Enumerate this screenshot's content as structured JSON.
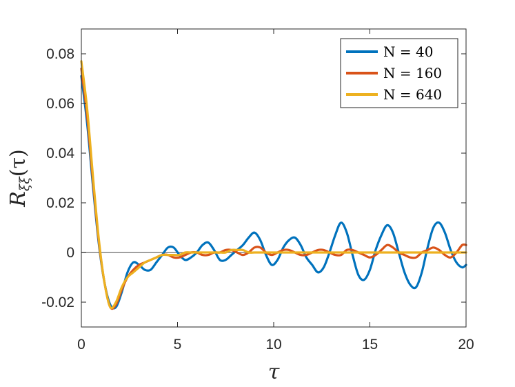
{
  "chart_data": {
    "type": "line",
    "title": "",
    "xlabel": "τ",
    "ylabel_main": "R",
    "ylabel_sub": "ξξ",
    "ylabel_arg": "(τ)",
    "xlim": [
      0,
      20
    ],
    "ylim": [
      -0.03,
      0.09
    ],
    "xticks": [
      0,
      5,
      10,
      15,
      20
    ],
    "xtick_labels": [
      "0",
      "5",
      "10",
      "15",
      "20"
    ],
    "yticks": [
      -0.02,
      0,
      0.02,
      0.04,
      0.06,
      0.08
    ],
    "ytick_labels": [
      "-0.02",
      "0",
      "0.02",
      "0.04",
      "0.06",
      "0.08"
    ],
    "grid": false,
    "legend_position": "top-right",
    "reference_line": {
      "y": 0,
      "color": "#808080"
    },
    "series": [
      {
        "name": "N = 40",
        "legend_label": "N = 40",
        "color": "#0072BD",
        "x": [
          0,
          0.3,
          0.6,
          0.9,
          1.2,
          1.5,
          1.8,
          2.1,
          2.4,
          2.7,
          3.0,
          3.3,
          3.6,
          3.9,
          4.2,
          4.5,
          4.8,
          5.1,
          5.4,
          5.7,
          6.0,
          6.3,
          6.6,
          6.9,
          7.2,
          7.5,
          7.8,
          8.1,
          8.4,
          8.7,
          9.0,
          9.3,
          9.6,
          9.9,
          10.2,
          10.5,
          10.8,
          11.1,
          11.4,
          11.7,
          12.0,
          12.3,
          12.6,
          12.9,
          13.2,
          13.5,
          13.8,
          14.1,
          14.4,
          14.7,
          15.0,
          15.3,
          15.6,
          15.9,
          16.2,
          16.5,
          16.8,
          17.1,
          17.4,
          17.7,
          18.0,
          18.3,
          18.6,
          18.9,
          19.2,
          19.5,
          19.8,
          20.0
        ],
        "y": [
          0.071,
          0.052,
          0.027,
          0.004,
          -0.012,
          -0.021,
          -0.022,
          -0.016,
          -0.008,
          -0.004,
          -0.005,
          -0.007,
          -0.007,
          -0.004,
          -0.001,
          0.002,
          0.002,
          -0.001,
          -0.003,
          -0.002,
          0.0,
          0.003,
          0.004,
          0.001,
          -0.003,
          -0.003,
          -0.001,
          0.001,
          0.003,
          0.006,
          0.008,
          0.005,
          -0.001,
          -0.005,
          -0.003,
          0.002,
          0.005,
          0.006,
          0.003,
          -0.002,
          -0.005,
          -0.008,
          -0.006,
          0.0,
          0.007,
          0.012,
          0.008,
          -0.001,
          -0.009,
          -0.011,
          -0.007,
          0.001,
          0.007,
          0.011,
          0.008,
          0.0,
          -0.008,
          -0.013,
          -0.014,
          -0.008,
          0.002,
          0.01,
          0.012,
          0.008,
          0.001,
          -0.004,
          -0.006,
          -0.005
        ]
      },
      {
        "name": "N = 160",
        "legend_label": "N = 160",
        "color": "#D95319",
        "x": [
          0,
          0.3,
          0.6,
          0.9,
          1.2,
          1.5,
          1.8,
          2.1,
          2.4,
          2.7,
          3.0,
          3.3,
          3.6,
          3.9,
          4.2,
          4.5,
          4.8,
          5.1,
          5.4,
          5.7,
          6.0,
          6.3,
          6.6,
          6.9,
          7.2,
          7.5,
          7.8,
          8.1,
          8.4,
          8.7,
          9.0,
          9.3,
          9.6,
          9.9,
          10.2,
          10.5,
          10.8,
          11.1,
          11.4,
          11.7,
          12.0,
          12.3,
          12.6,
          12.9,
          13.2,
          13.5,
          13.8,
          14.1,
          14.4,
          14.7,
          15.0,
          15.3,
          15.6,
          15.9,
          16.2,
          16.5,
          16.8,
          17.1,
          17.4,
          17.7,
          18.0,
          18.3,
          18.6,
          18.9,
          19.2,
          19.5,
          19.8,
          20.0
        ],
        "y": [
          0.074,
          0.055,
          0.029,
          0.005,
          -0.012,
          -0.022,
          -0.021,
          -0.015,
          -0.01,
          -0.007,
          -0.005,
          -0.004,
          -0.003,
          -0.002,
          -0.001,
          -0.001,
          -0.002,
          -0.002,
          -0.001,
          0.0,
          0.0,
          -0.001,
          -0.001,
          0.0,
          0.0,
          0.001,
          0.001,
          0.0,
          -0.001,
          0.0,
          0.002,
          0.002,
          0.0,
          -0.001,
          0.0,
          0.001,
          0.001,
          0.0,
          -0.001,
          -0.001,
          0.0,
          0.001,
          0.001,
          0.0,
          -0.001,
          -0.001,
          0.001,
          0.001,
          0.0,
          -0.001,
          -0.002,
          -0.001,
          0.001,
          0.003,
          0.002,
          0.0,
          -0.001,
          -0.002,
          -0.002,
          0.0,
          0.001,
          0.002,
          0.001,
          -0.001,
          -0.002,
          0.0,
          0.003,
          0.003
        ]
      },
      {
        "name": "N = 640",
        "legend_label": "N = 640",
        "color": "#EDB120",
        "x": [
          0,
          0.3,
          0.6,
          0.9,
          1.2,
          1.5,
          1.8,
          2.1,
          2.4,
          2.7,
          3.0,
          3.3,
          3.6,
          3.9,
          4.2,
          4.5,
          4.8,
          5.1,
          5.4,
          5.7,
          6.0,
          6.3,
          6.6,
          6.9,
          7.2,
          7.5,
          7.8,
          8.1,
          8.4,
          8.7,
          9.0,
          9.3,
          9.6,
          9.9,
          10.2,
          10.5,
          10.8,
          11.1,
          11.4,
          11.7,
          12.0,
          12.3,
          12.6,
          12.9,
          13.2,
          13.5,
          13.8,
          14.1,
          14.4,
          14.7,
          15.0,
          15.3,
          15.6,
          15.9,
          16.2,
          16.5,
          16.8,
          17.1,
          17.4,
          17.7,
          18.0,
          18.3,
          18.6,
          18.9,
          19.2,
          19.5,
          19.8,
          20.0
        ],
        "y": [
          0.077,
          0.058,
          0.031,
          0.006,
          -0.012,
          -0.022,
          -0.02,
          -0.014,
          -0.01,
          -0.008,
          -0.006,
          -0.004,
          -0.003,
          -0.002,
          -0.001,
          -0.001,
          -0.001,
          -0.001,
          0.0,
          0.0,
          0.0,
          0.0,
          0.0,
          0.0,
          0.0,
          0.0,
          0.001,
          0.001,
          0.001,
          0.0,
          0.0,
          0.0,
          0.0,
          0.0,
          0.0,
          0.0,
          0.0,
          0.0,
          0.0,
          0.0,
          0.0,
          0.0,
          0.0,
          0.0,
          0.0,
          0.0,
          0.0,
          0.0,
          0.0,
          0.0,
          0.0,
          0.0,
          0.0,
          0.0,
          0.0,
          0.0,
          0.0,
          0.0,
          0.0,
          0.0,
          0.0,
          0.0,
          0.0,
          0.0,
          0.0,
          0.0,
          0.0,
          0.0
        ]
      }
    ]
  }
}
